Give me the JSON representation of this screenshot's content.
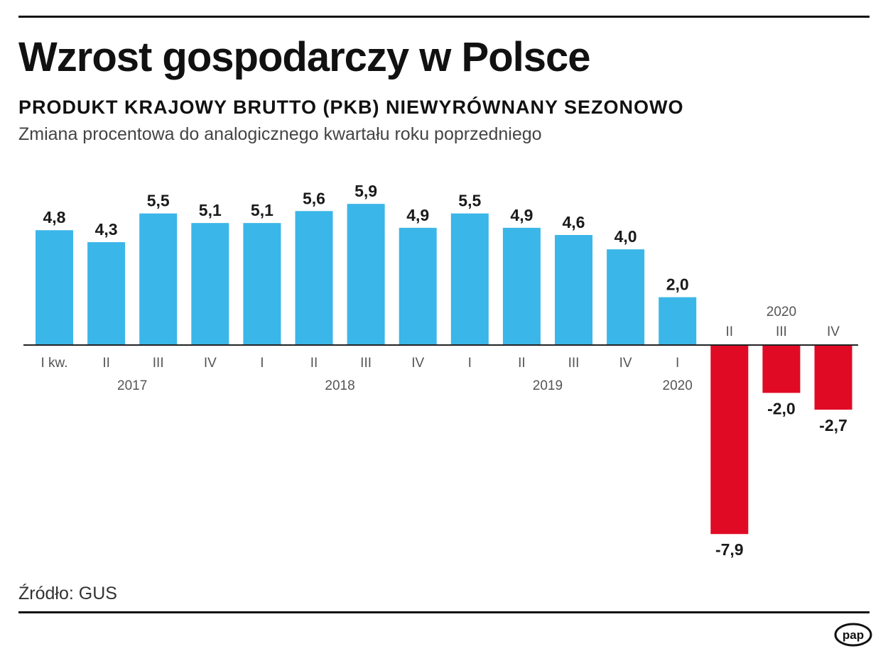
{
  "header": {
    "title": "Wzrost gospodarczy w Polsce",
    "subtitle": "PRODUKT KRAJOWY BRUTTO (PKB) NIEWYRÓWNANY SEZONOWO",
    "description": "Zmiana procentowa do analogicznego kwartału roku poprzedniego"
  },
  "colors": {
    "positive": "#3bb6e8",
    "negative": "#e00a24",
    "axis": "#222222"
  },
  "chart_data": {
    "type": "bar",
    "title": "Wzrost gospodarczy w Polsce",
    "xlabel": "",
    "ylabel": "",
    "ylim": [
      -7.9,
      5.9
    ],
    "categories": [
      "I kw.",
      "II",
      "III",
      "IV",
      "I",
      "II",
      "III",
      "IV",
      "I",
      "II",
      "III",
      "IV",
      "I",
      "II",
      "III",
      "IV"
    ],
    "values": [
      4.8,
      4.3,
      5.5,
      5.1,
      5.1,
      5.6,
      5.9,
      4.9,
      5.5,
      4.9,
      4.6,
      4.0,
      2.0,
      -7.9,
      -2.0,
      -2.7
    ],
    "value_labels": [
      "4,8",
      "4,3",
      "5,5",
      "5,1",
      "5,1",
      "5,6",
      "5,9",
      "4,9",
      "5,5",
      "4,9",
      "4,6",
      "4,0",
      "2,0",
      "-7,9",
      "-2,0",
      "-2,7"
    ],
    "year_groups": [
      {
        "label": "2017",
        "from": 0,
        "to": 3
      },
      {
        "label": "2018",
        "from": 4,
        "to": 7
      },
      {
        "label": "2019",
        "from": 8,
        "to": 11
      },
      {
        "label": "2020",
        "from": 12,
        "to": 12
      },
      {
        "label": "2020",
        "from": 13,
        "to": 15
      }
    ]
  },
  "footer": {
    "source": "Źródło: GUS",
    "logo_text": "pap"
  }
}
